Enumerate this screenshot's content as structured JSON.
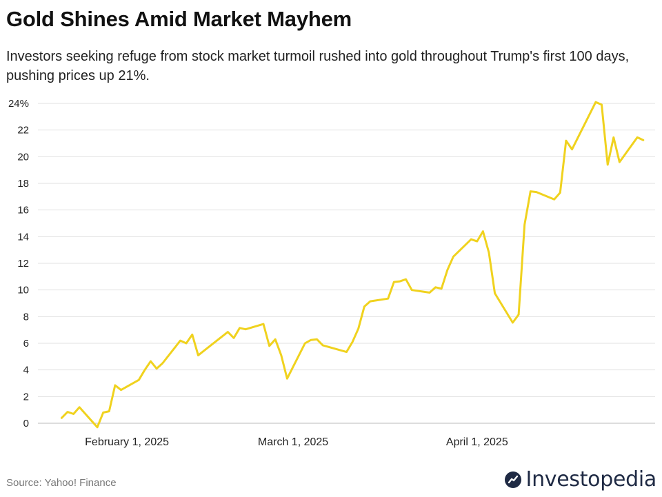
{
  "title": "Gold Shines Amid Market Mayhem",
  "subtitle": "Investors seeking refuge from stock market turmoil rushed into gold throughout Trump's first 100 days, pushing prices up 21%.",
  "source": "Source: Yahoo! Finance",
  "brand": {
    "name": "Investopedia",
    "logo_icon": "investopedia-logo-icon",
    "color": "#1f2a44"
  },
  "chart_data": {
    "type": "line",
    "title": "Gold Shines Amid Market Mayhem",
    "xlabel": "",
    "ylabel": "",
    "ylim": [
      0,
      24
    ],
    "y_ticks": [
      0,
      2,
      4,
      6,
      8,
      10,
      12,
      14,
      16,
      18,
      20,
      22,
      24
    ],
    "y_tick_labels": [
      "0",
      "2",
      "4",
      "6",
      "8",
      "10",
      "12",
      "14",
      "16",
      "18",
      "20",
      "22",
      "24%"
    ],
    "x_ticks": [
      {
        "date": "2025-02-01",
        "label": "February 1, 2025"
      },
      {
        "date": "2025-03-01",
        "label": "March 1, 2025"
      },
      {
        "date": "2025-04-01",
        "label": "April 1, 2025"
      }
    ],
    "grid": true,
    "line_color": "#f0d21e",
    "series": [
      {
        "points": [
          [
            "2025-01-21",
            0.4
          ],
          [
            "2025-01-22",
            0.85
          ],
          [
            "2025-01-23",
            0.7
          ],
          [
            "2025-01-24",
            1.2
          ],
          [
            "2025-01-27",
            -0.3
          ],
          [
            "2025-01-28",
            0.8
          ],
          [
            "2025-01-29",
            0.9
          ],
          [
            "2025-01-30",
            2.85
          ],
          [
            "2025-01-31",
            2.5
          ],
          [
            "2025-02-03",
            3.25
          ],
          [
            "2025-02-04",
            4.0
          ],
          [
            "2025-02-05",
            4.65
          ],
          [
            "2025-02-06",
            4.1
          ],
          [
            "2025-02-07",
            4.5
          ],
          [
            "2025-02-10",
            6.2
          ],
          [
            "2025-02-11",
            6.0
          ],
          [
            "2025-02-12",
            6.65
          ],
          [
            "2025-02-13",
            5.1
          ],
          [
            "2025-02-18",
            6.85
          ],
          [
            "2025-02-19",
            6.4
          ],
          [
            "2025-02-20",
            7.15
          ],
          [
            "2025-02-21",
            7.05
          ],
          [
            "2025-02-24",
            7.45
          ],
          [
            "2025-02-25",
            5.8
          ],
          [
            "2025-02-26",
            6.3
          ],
          [
            "2025-02-27",
            5.1
          ],
          [
            "2025-02-28",
            3.35
          ],
          [
            "2025-03-03",
            6.0
          ],
          [
            "2025-03-04",
            6.25
          ],
          [
            "2025-03-05",
            6.3
          ],
          [
            "2025-03-06",
            5.85
          ],
          [
            "2025-03-10",
            5.35
          ],
          [
            "2025-03-11",
            6.1
          ],
          [
            "2025-03-12",
            7.1
          ],
          [
            "2025-03-13",
            8.75
          ],
          [
            "2025-03-14",
            9.15
          ],
          [
            "2025-03-17",
            9.35
          ],
          [
            "2025-03-18",
            10.6
          ],
          [
            "2025-03-19",
            10.65
          ],
          [
            "2025-03-20",
            10.8
          ],
          [
            "2025-03-21",
            10.0
          ],
          [
            "2025-03-24",
            9.8
          ],
          [
            "2025-03-25",
            10.2
          ],
          [
            "2025-03-26",
            10.1
          ],
          [
            "2025-03-27",
            11.5
          ],
          [
            "2025-03-28",
            12.5
          ],
          [
            "2025-03-31",
            13.8
          ],
          [
            "2025-04-01",
            13.65
          ],
          [
            "2025-04-02",
            14.4
          ],
          [
            "2025-04-03",
            12.8
          ],
          [
            "2025-04-04",
            9.75
          ],
          [
            "2025-04-07",
            7.55
          ],
          [
            "2025-04-08",
            8.15
          ],
          [
            "2025-04-09",
            14.9
          ],
          [
            "2025-04-10",
            17.4
          ],
          [
            "2025-04-11",
            17.35
          ],
          [
            "2025-04-14",
            16.8
          ],
          [
            "2025-04-15",
            17.3
          ],
          [
            "2025-04-16",
            21.2
          ],
          [
            "2025-04-17",
            20.55
          ],
          [
            "2025-04-21",
            24.1
          ],
          [
            "2025-04-22",
            23.9
          ],
          [
            "2025-04-23",
            19.4
          ],
          [
            "2025-04-24",
            21.45
          ],
          [
            "2025-04-25",
            19.6
          ],
          [
            "2025-04-28",
            21.45
          ],
          [
            "2025-04-29",
            21.25
          ]
        ]
      }
    ]
  }
}
